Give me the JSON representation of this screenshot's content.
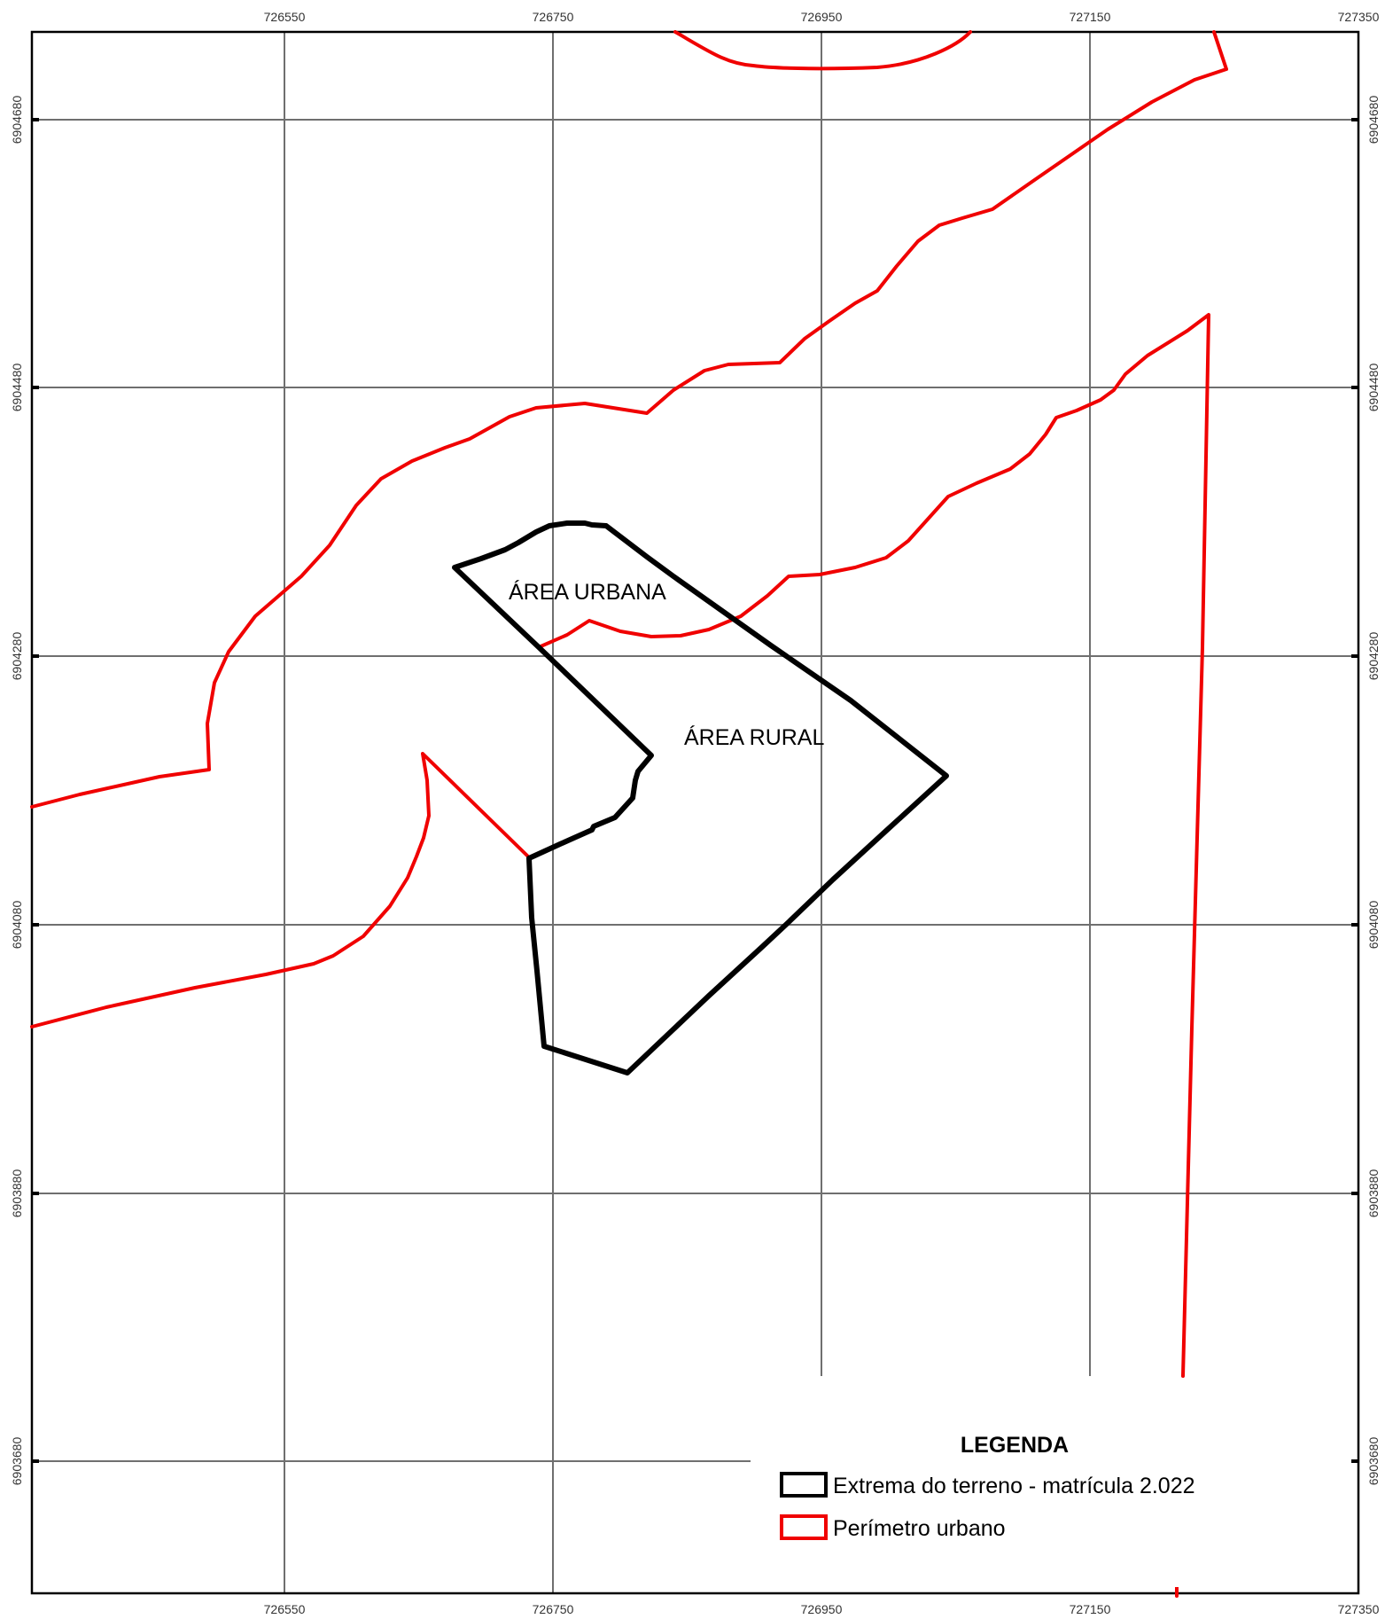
{
  "map": {
    "x_ticks": [
      "726550",
      "726750",
      "726950",
      "727150",
      "727350"
    ],
    "y_ticks": [
      "6904680",
      "6904480",
      "6904280",
      "6904080",
      "6903880",
      "6903680"
    ],
    "labels": {
      "urban": "ÁREA URBANA",
      "rural": "ÁREA RURAL"
    },
    "colors": {
      "urban_perimeter": "#f00000",
      "property_boundary": "#000000",
      "grid": "#6f6f6f"
    }
  },
  "legend": {
    "title": "LEGENDA",
    "items": [
      {
        "label": "Extrema do terreno - matrícula 2.022",
        "color": "#000000"
      },
      {
        "label": "Perímetro urbano",
        "color": "#f00000"
      }
    ]
  }
}
